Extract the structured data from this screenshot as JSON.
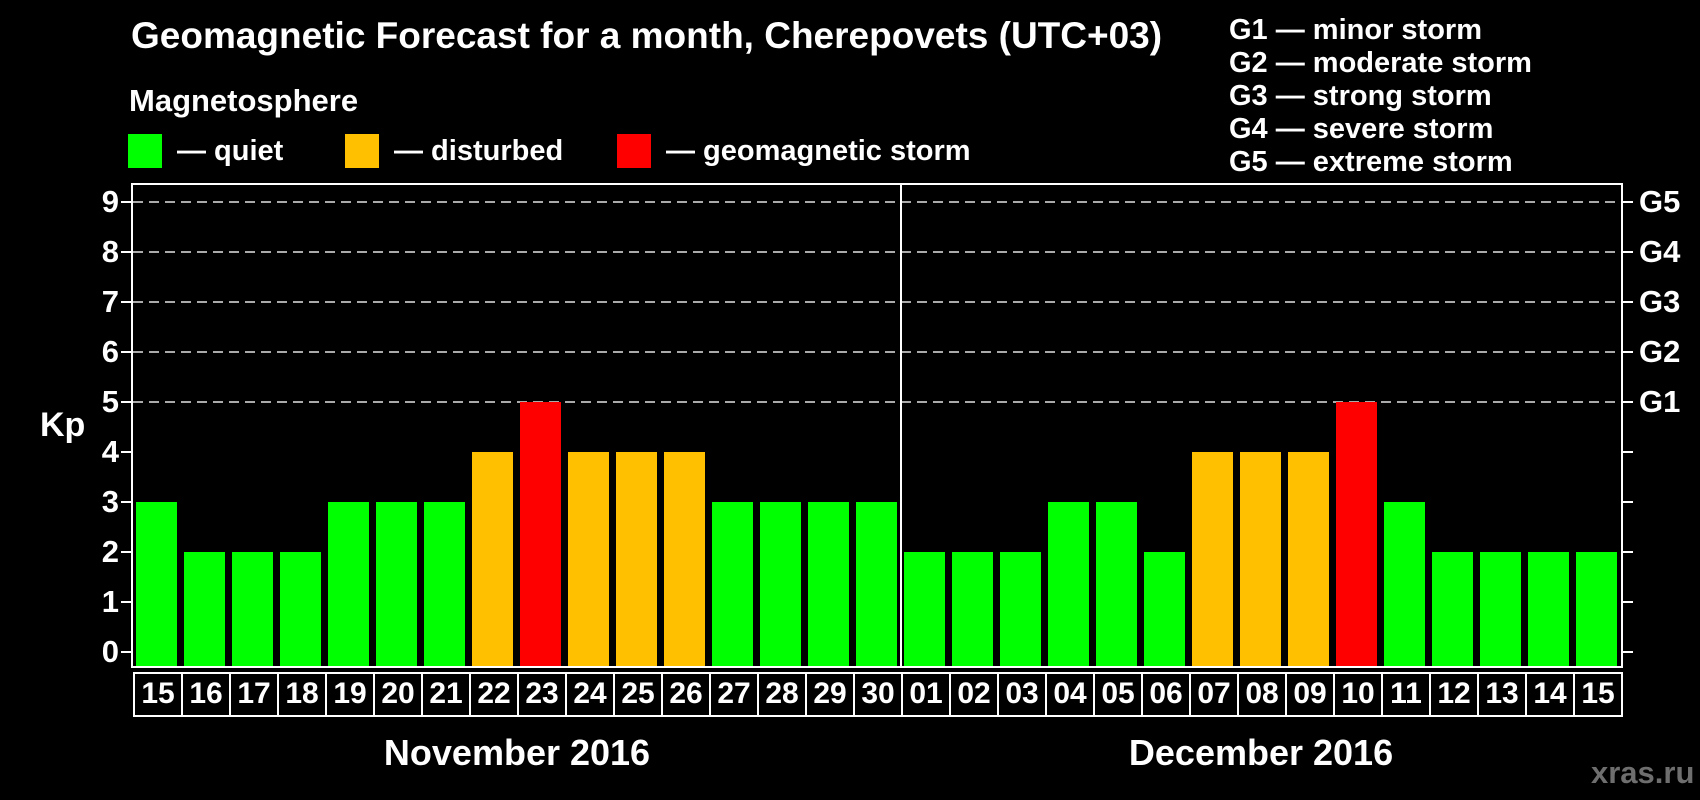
{
  "title": "Geomagnetic Forecast for a month, Cherepovets (UTC+03)",
  "subtitle": "Magnetosphere",
  "legend": {
    "items": [
      {
        "name": "quiet",
        "label": "— quiet",
        "color": "#00ff00"
      },
      {
        "name": "disturbed",
        "label": "— disturbed",
        "color": "#ffc000"
      },
      {
        "name": "storm",
        "label": "— geomagnetic storm",
        "color": "#ff0000"
      }
    ]
  },
  "g_scale_legend": [
    "G1 — minor storm",
    "G2 — moderate storm",
    "G3 — strong storm",
    "G4 — severe storm",
    "G5 — extreme storm"
  ],
  "watermark": "xras.ru",
  "chart_data": {
    "type": "bar",
    "title": "Geomagnetic Forecast for a month, Cherepovets (UTC+03)",
    "ylabel": "Kp",
    "ylim": [
      -0.3,
      9.4
    ],
    "yticks": [
      0,
      1,
      2,
      3,
      4,
      5,
      6,
      7,
      8,
      9
    ],
    "gridlines_at": [
      5,
      6,
      7,
      8,
      9
    ],
    "grid": true,
    "right_axis": [
      {
        "kp": 5,
        "label": "G1"
      },
      {
        "kp": 6,
        "label": "G2"
      },
      {
        "kp": 7,
        "label": "G3"
      },
      {
        "kp": 8,
        "label": "G4"
      },
      {
        "kp": 9,
        "label": "G5"
      }
    ],
    "status_colors": {
      "quiet": "#00ff00",
      "disturbed": "#ffc000",
      "storm": "#ff0000"
    },
    "groups": [
      {
        "label": "November 2016",
        "days": [
          {
            "day": "15",
            "kp": 3,
            "status": "quiet"
          },
          {
            "day": "16",
            "kp": 2,
            "status": "quiet"
          },
          {
            "day": "17",
            "kp": 2,
            "status": "quiet"
          },
          {
            "day": "18",
            "kp": 2,
            "status": "quiet"
          },
          {
            "day": "19",
            "kp": 3,
            "status": "quiet"
          },
          {
            "day": "20",
            "kp": 3,
            "status": "quiet"
          },
          {
            "day": "21",
            "kp": 3,
            "status": "quiet"
          },
          {
            "day": "22",
            "kp": 4,
            "status": "disturbed"
          },
          {
            "day": "23",
            "kp": 5,
            "status": "storm"
          },
          {
            "day": "24",
            "kp": 4,
            "status": "disturbed"
          },
          {
            "day": "25",
            "kp": 4,
            "status": "disturbed"
          },
          {
            "day": "26",
            "kp": 4,
            "status": "disturbed"
          },
          {
            "day": "27",
            "kp": 3,
            "status": "quiet"
          },
          {
            "day": "28",
            "kp": 3,
            "status": "quiet"
          },
          {
            "day": "29",
            "kp": 3,
            "status": "quiet"
          },
          {
            "day": "30",
            "kp": 3,
            "status": "quiet"
          }
        ]
      },
      {
        "label": "December 2016",
        "days": [
          {
            "day": "01",
            "kp": 2,
            "status": "quiet"
          },
          {
            "day": "02",
            "kp": 2,
            "status": "quiet"
          },
          {
            "day": "03",
            "kp": 2,
            "status": "quiet"
          },
          {
            "day": "04",
            "kp": 3,
            "status": "quiet"
          },
          {
            "day": "05",
            "kp": 3,
            "status": "quiet"
          },
          {
            "day": "06",
            "kp": 2,
            "status": "quiet"
          },
          {
            "day": "07",
            "kp": 4,
            "status": "disturbed"
          },
          {
            "day": "08",
            "kp": 4,
            "status": "disturbed"
          },
          {
            "day": "09",
            "kp": 4,
            "status": "disturbed"
          },
          {
            "day": "10",
            "kp": 5,
            "status": "storm"
          },
          {
            "day": "11",
            "kp": 3,
            "status": "quiet"
          },
          {
            "day": "12",
            "kp": 2,
            "status": "quiet"
          },
          {
            "day": "13",
            "kp": 2,
            "status": "quiet"
          },
          {
            "day": "14",
            "kp": 2,
            "status": "quiet"
          },
          {
            "day": "15",
            "kp": 2,
            "status": "quiet"
          }
        ]
      }
    ]
  }
}
